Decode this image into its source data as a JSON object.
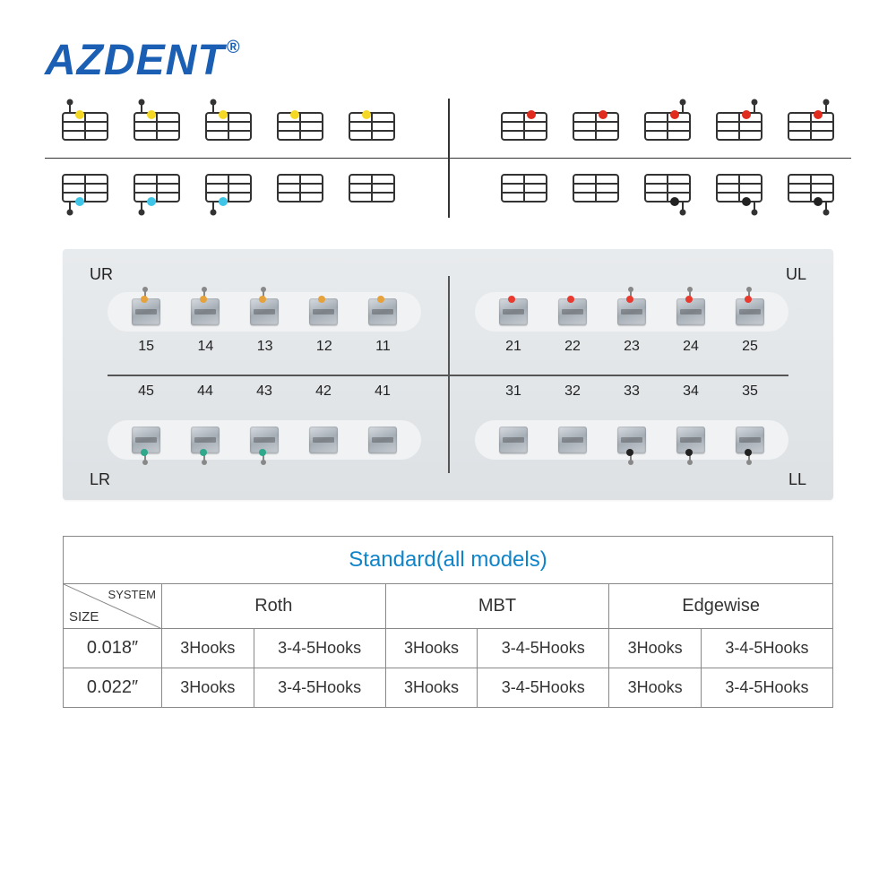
{
  "logo": {
    "text": "AZDENT",
    "reg": "®"
  },
  "colors": {
    "yellow": "#f5d823",
    "red": "#e02b1f",
    "cyan": "#3fc5e8",
    "black": "#222222",
    "orange": "#e6a23c",
    "green": "#2fa88c",
    "red2": "#e83a2f",
    "logo_blue": "#1a5fb4",
    "title_blue": "#1084c9"
  },
  "card": {
    "ur": "UR",
    "ul": "UL",
    "lr": "LR",
    "ll": "LL",
    "row1": [
      "15",
      "14",
      "13",
      "12",
      "11"
    ],
    "row2": [
      "21",
      "22",
      "23",
      "24",
      "25"
    ],
    "row3": [
      "45",
      "44",
      "43",
      "42",
      "41"
    ],
    "row4": [
      "31",
      "32",
      "33",
      "34",
      "35"
    ]
  },
  "table": {
    "title": "Standard(all models)",
    "system_label": "SYSTEM",
    "size_label": "SIZE",
    "cols": [
      "Roth",
      "MBT",
      "Edgewise"
    ],
    "sizes": [
      "0.018″",
      "0.022″"
    ],
    "cell_a": "3Hooks",
    "cell_b": "3-4-5Hooks"
  }
}
